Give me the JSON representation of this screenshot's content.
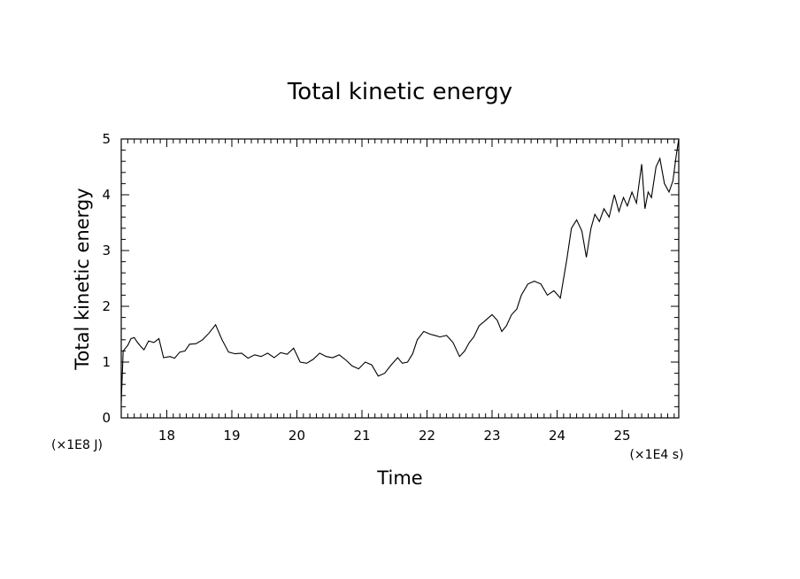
{
  "chart_data": {
    "type": "line",
    "title": "Total kinetic energy",
    "xlabel": "Time",
    "ylabel": "Total kinetic energy",
    "x_unit_label": "(×1E4 s)",
    "y_unit_label": "(×1E8 J)",
    "xlim": [
      17.3,
      25.87
    ],
    "ylim": [
      0,
      5
    ],
    "x_ticks": [
      "18",
      "19",
      "20",
      "21",
      "22",
      "23",
      "24",
      "25"
    ],
    "y_ticks": [
      "0",
      "1",
      "2",
      "3",
      "4",
      "5"
    ],
    "grid": false,
    "legend": "none",
    "series": [
      {
        "x": [
          17.3,
          17.33,
          17.4,
          17.45,
          17.5,
          17.55,
          17.6,
          17.65,
          17.72,
          17.8,
          17.88,
          17.95,
          18.05,
          18.12,
          18.2,
          18.28,
          18.35,
          18.45,
          18.55,
          18.65,
          18.75,
          18.85,
          18.95,
          19.05,
          19.15,
          19.25,
          19.35,
          19.45,
          19.55,
          19.65,
          19.75,
          19.85,
          19.95,
          20.05,
          20.15,
          20.25,
          20.35,
          20.45,
          20.55,
          20.65,
          20.75,
          20.85,
          20.95,
          21.05,
          21.15,
          21.25,
          21.35,
          21.45,
          21.55,
          21.62,
          21.7,
          21.78,
          21.85,
          21.95,
          22.05,
          22.12,
          22.2,
          22.3,
          22.4,
          22.5,
          22.58,
          22.65,
          22.72,
          22.8,
          22.9,
          23.0,
          23.08,
          23.15,
          23.22,
          23.3,
          23.38,
          23.45,
          23.55,
          23.65,
          23.75,
          23.85,
          23.95,
          24.05,
          24.15,
          24.22,
          24.3,
          24.38,
          24.45,
          24.52,
          24.58,
          24.65,
          24.72,
          24.8,
          24.88,
          24.95,
          25.02,
          25.08,
          25.15,
          25.22,
          25.3,
          25.35,
          25.4,
          25.45,
          25.52,
          25.58,
          25.65,
          25.72,
          25.78,
          25.83,
          25.87
        ],
        "y": [
          0.28,
          1.2,
          1.3,
          1.42,
          1.44,
          1.35,
          1.28,
          1.22,
          1.38,
          1.35,
          1.42,
          1.08,
          1.1,
          1.07,
          1.18,
          1.2,
          1.32,
          1.33,
          1.4,
          1.52,
          1.67,
          1.4,
          1.18,
          1.15,
          1.16,
          1.07,
          1.13,
          1.1,
          1.16,
          1.08,
          1.17,
          1.14,
          1.25,
          1.0,
          0.98,
          1.05,
          1.16,
          1.1,
          1.08,
          1.13,
          1.04,
          0.93,
          0.88,
          1.0,
          0.95,
          0.75,
          0.8,
          0.95,
          1.08,
          0.98,
          1.0,
          1.15,
          1.4,
          1.55,
          1.5,
          1.48,
          1.45,
          1.48,
          1.35,
          1.1,
          1.2,
          1.35,
          1.45,
          1.65,
          1.75,
          1.85,
          1.75,
          1.55,
          1.65,
          1.85,
          1.95,
          2.2,
          2.4,
          2.45,
          2.4,
          2.2,
          2.28,
          2.15,
          2.85,
          3.4,
          3.55,
          3.35,
          2.88,
          3.4,
          3.65,
          3.52,
          3.75,
          3.6,
          4.0,
          3.7,
          3.95,
          3.8,
          4.05,
          3.85,
          4.55,
          3.75,
          4.05,
          3.95,
          4.5,
          4.65,
          4.2,
          4.05,
          4.25,
          4.7,
          5.0
        ]
      }
    ]
  }
}
